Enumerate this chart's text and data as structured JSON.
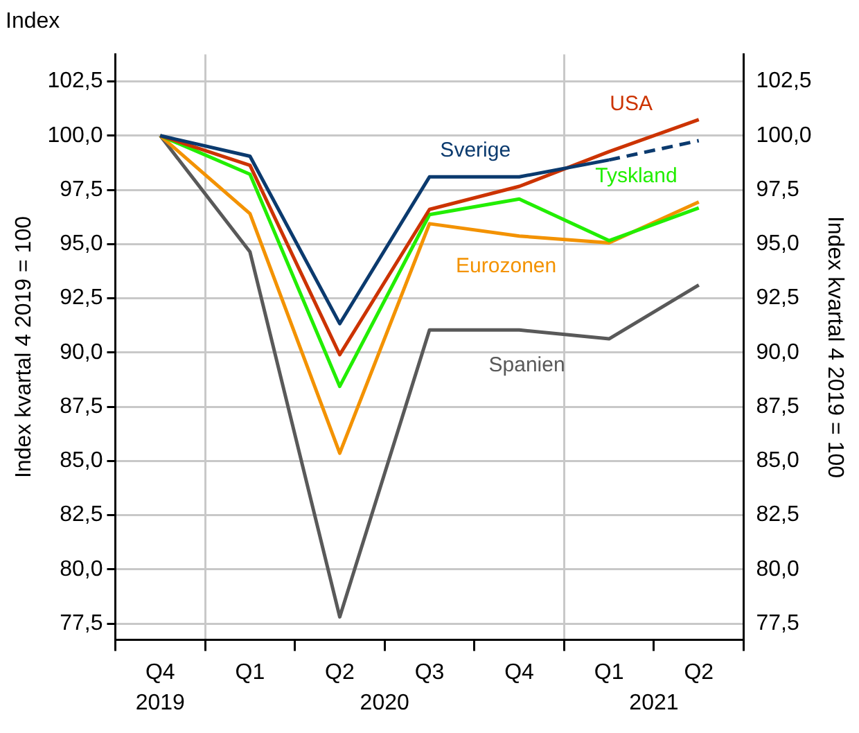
{
  "chart_data": {
    "type": "line",
    "title": "Index",
    "ylabel": "Index kvartal 4 2019 = 100",
    "y2label": "Index kvartal 4 2019 = 100",
    "categories": [
      "Q4",
      "Q1",
      "Q2",
      "Q3",
      "Q4",
      "Q1",
      "Q2"
    ],
    "series": [
      {
        "name": "Sverige",
        "color": "#0b3a6e",
        "line_style": "solid",
        "values": [
          100,
          99.05,
          91.33,
          98.1,
          98.1,
          98.88,
          null
        ]
      },
      {
        "name": "USA",
        "color": "#cc3300",
        "line_style": "solid",
        "values": [
          100,
          98.63,
          89.9,
          96.6,
          97.66,
          99.26,
          100.74
        ]
      },
      {
        "name": "Tyskland",
        "color": "#22ee00",
        "line_style": "solid",
        "values": [
          100,
          98.22,
          88.44,
          96.36,
          97.08,
          95.16,
          96.67
        ]
      },
      {
        "name": "Eurozonen",
        "color": "#f39200",
        "line_style": "solid",
        "values": [
          100,
          96.4,
          85.36,
          95.94,
          95.37,
          95.06,
          96.94
        ]
      },
      {
        "name": "Spanien",
        "color": "#595959",
        "line_style": "solid",
        "values": [
          100,
          94.64,
          77.81,
          91.04,
          91.04,
          90.63,
          93.11
        ]
      },
      {
        "color": "#0b3a6e",
        "line_style": "dashed",
        "values": [
          null,
          null,
          null,
          null,
          null,
          98.88,
          99.77
        ]
      }
    ],
    "ylim": [
      76.75,
      103.75
    ],
    "yticks": [
      {
        "value": 77.5,
        "label": "77,5"
      },
      {
        "value": 80,
        "label": "80,0"
      },
      {
        "value": 82.5,
        "label": "82,5"
      },
      {
        "value": 85,
        "label": "85,0"
      },
      {
        "value": 87.5,
        "label": "87,5"
      },
      {
        "value": 90,
        "label": "90,0"
      },
      {
        "value": 92.5,
        "label": "92,5"
      },
      {
        "value": 95,
        "label": "95,0"
      },
      {
        "value": 97.5,
        "label": "97,5"
      },
      {
        "value": 100,
        "label": "100,0"
      },
      {
        "value": 102.5,
        "label": "102,5"
      }
    ],
    "y2lim": [
      76.75,
      103.75
    ],
    "y2ticks": [
      {
        "value": 77.5,
        "label": "77,5"
      },
      {
        "value": 80,
        "label": "80,0"
      },
      {
        "value": 82.5,
        "label": "82,5"
      },
      {
        "value": 85,
        "label": "85,0"
      },
      {
        "value": 87.5,
        "label": "87,5"
      },
      {
        "value": 90,
        "label": "90,0"
      },
      {
        "value": 92.5,
        "label": "92,5"
      },
      {
        "value": 95,
        "label": "95,0"
      },
      {
        "value": 97.5,
        "label": "97,5"
      },
      {
        "value": 100,
        "label": "100,0"
      },
      {
        "value": 102.5,
        "label": "102,5"
      }
    ],
    "grid": true,
    "legend": false,
    "annotations": [
      "2019",
      "2020",
      "2021"
    ]
  }
}
